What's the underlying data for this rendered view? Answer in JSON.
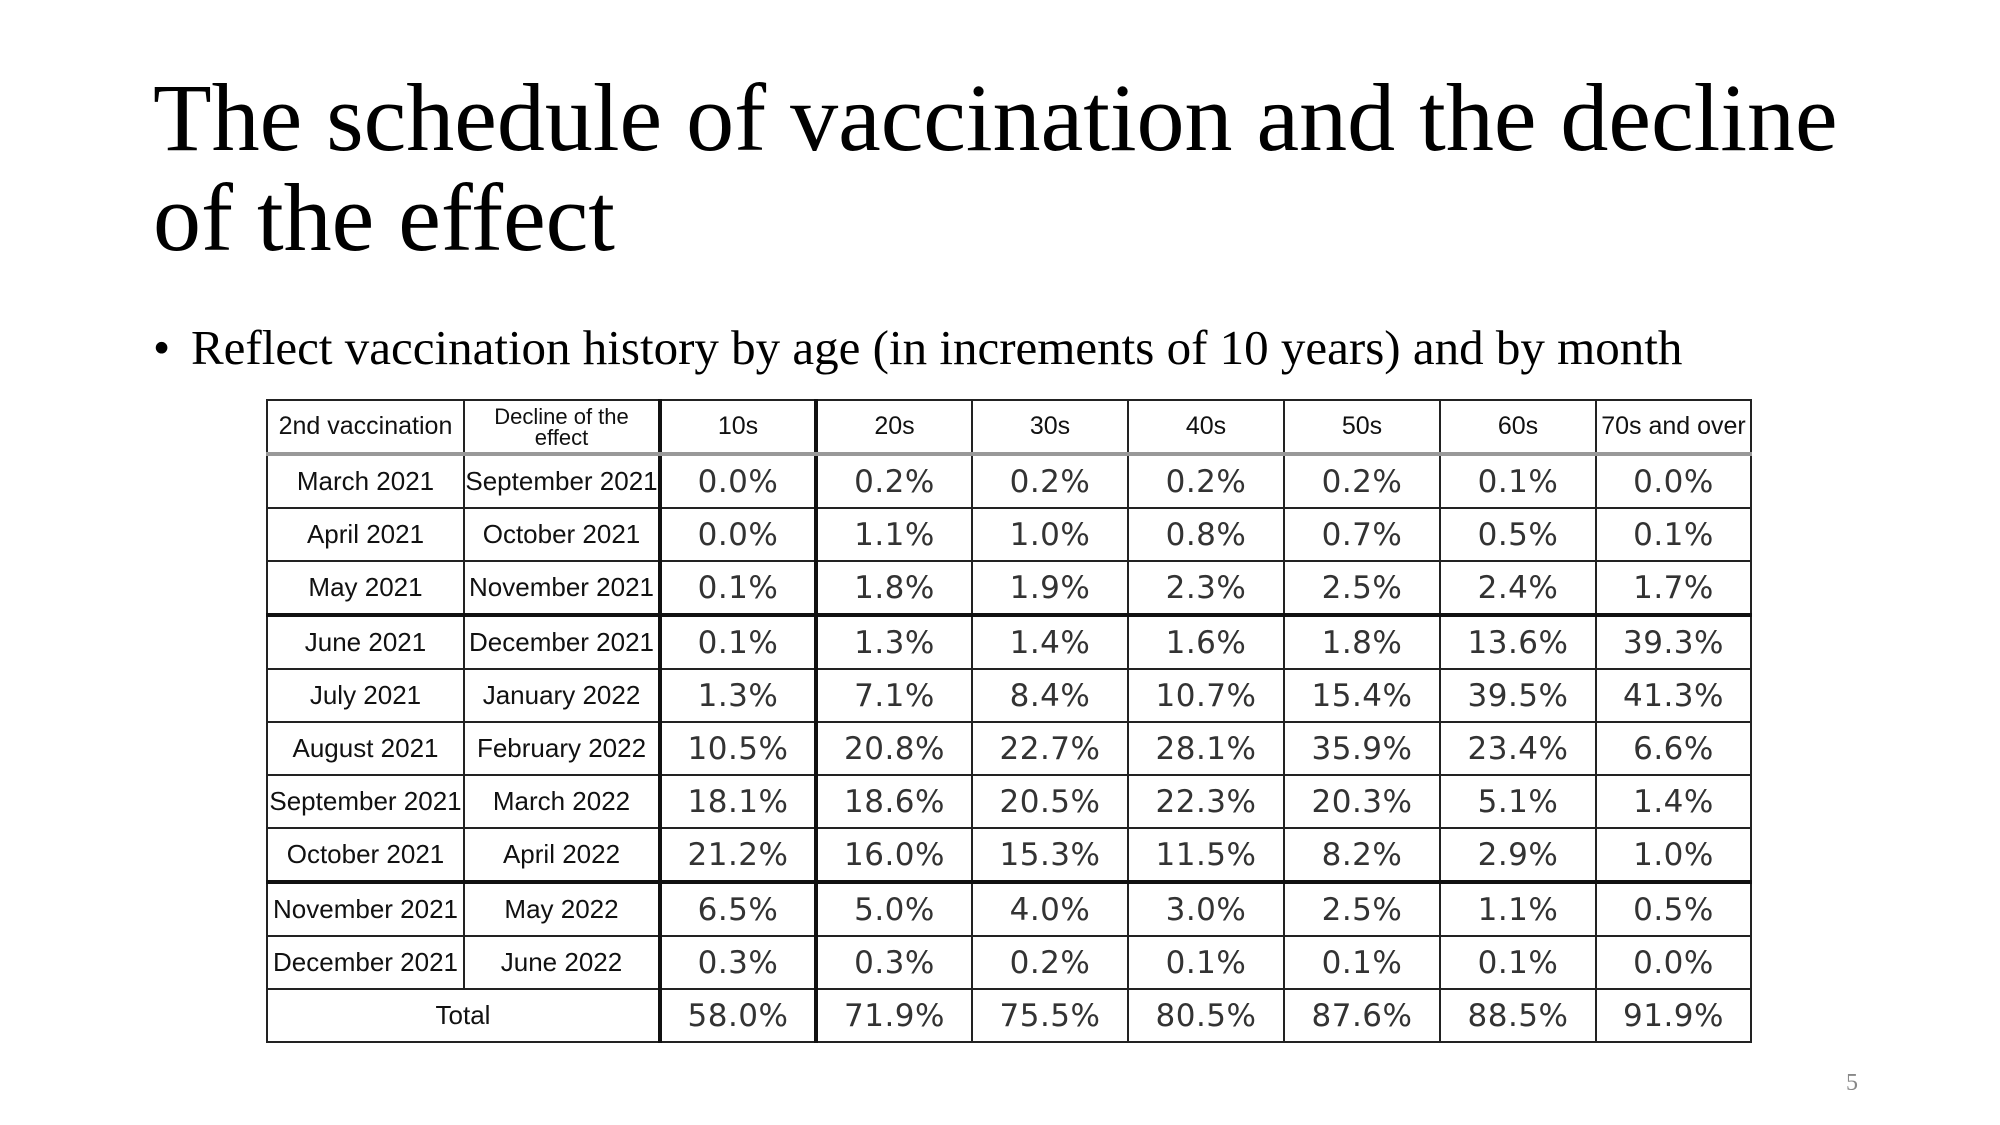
{
  "slide": {
    "title": "The schedule of vaccination and the decline of the effect",
    "bullet_symbol": "•",
    "bullet_text": "Reflect vaccination history by age (in increments of 10 years) and by month",
    "page_number": "5"
  },
  "table": {
    "headers": [
      "2nd vaccination",
      "Decline of the effect",
      "10s",
      "20s",
      "30s",
      "40s",
      "50s",
      "60s",
      "70s and over"
    ],
    "rows": [
      {
        "vaccination": "March 2021",
        "decline": "September 2021",
        "values": [
          "0.0%",
          "0.2%",
          "0.2%",
          "0.2%",
          "0.2%",
          "0.1%",
          "0.0%"
        ]
      },
      {
        "vaccination": "April 2021",
        "decline": "October 2021",
        "values": [
          "0.0%",
          "1.1%",
          "1.0%",
          "0.8%",
          "0.7%",
          "0.5%",
          "0.1%"
        ]
      },
      {
        "vaccination": "May 2021",
        "decline": "November 2021",
        "values": [
          "0.1%",
          "1.8%",
          "1.9%",
          "2.3%",
          "2.5%",
          "2.4%",
          "1.7%"
        ]
      },
      {
        "vaccination": "June 2021",
        "decline": "December 2021",
        "values": [
          "0.1%",
          "1.3%",
          "1.4%",
          "1.6%",
          "1.8%",
          "13.6%",
          "39.3%"
        ]
      },
      {
        "vaccination": "July 2021",
        "decline": "January 2022",
        "values": [
          "1.3%",
          "7.1%",
          "8.4%",
          "10.7%",
          "15.4%",
          "39.5%",
          "41.3%"
        ]
      },
      {
        "vaccination": "August 2021",
        "decline": "February 2022",
        "values": [
          "10.5%",
          "20.8%",
          "22.7%",
          "28.1%",
          "35.9%",
          "23.4%",
          "6.6%"
        ]
      },
      {
        "vaccination": "September 2021",
        "decline": "March 2022",
        "values": [
          "18.1%",
          "18.6%",
          "20.5%",
          "22.3%",
          "20.3%",
          "5.1%",
          "1.4%"
        ]
      },
      {
        "vaccination": "October 2021",
        "decline": "April 2022",
        "values": [
          "21.2%",
          "16.0%",
          "15.3%",
          "11.5%",
          "8.2%",
          "2.9%",
          "1.0%"
        ]
      },
      {
        "vaccination": "November 2021",
        "decline": "May 2022",
        "values": [
          "6.5%",
          "5.0%",
          "4.0%",
          "3.0%",
          "2.5%",
          "1.1%",
          "0.5%"
        ]
      },
      {
        "vaccination": "December 2021",
        "decline": "June 2022",
        "values": [
          "0.3%",
          "0.3%",
          "0.2%",
          "0.1%",
          "0.1%",
          "0.1%",
          "0.0%"
        ]
      }
    ],
    "total": {
      "label": "Total",
      "values": [
        "58.0%",
        "71.9%",
        "75.5%",
        "80.5%",
        "87.6%",
        "88.5%",
        "91.9%"
      ]
    }
  }
}
